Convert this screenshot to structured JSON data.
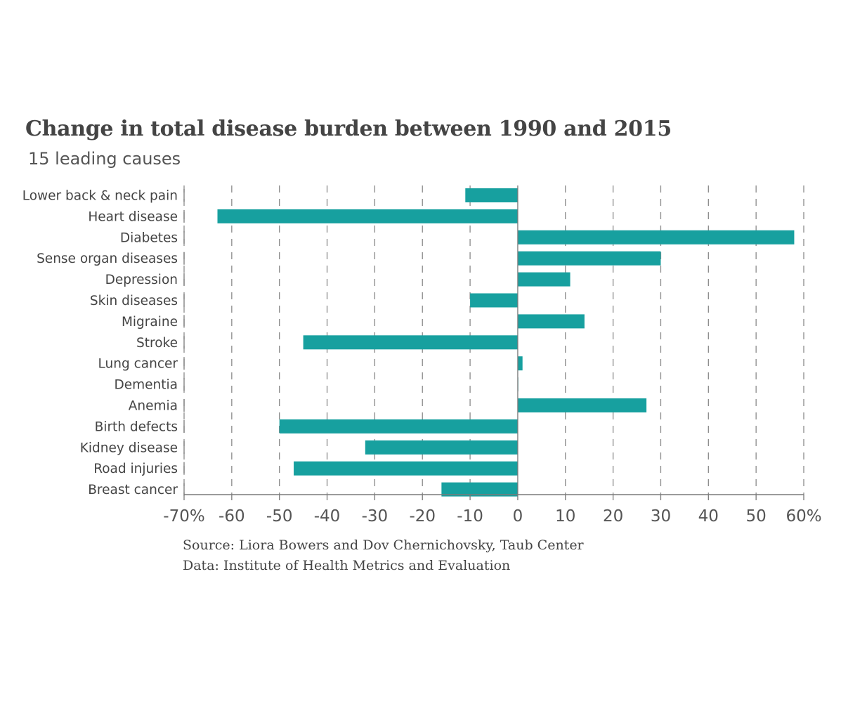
{
  "chart_data": {
    "type": "bar",
    "orientation": "horizontal",
    "title": "Change in total disease burden between 1990 and 2015",
    "subtitle": "15 leading causes",
    "categories": [
      "Lower back & neck pain",
      "Heart disease",
      "Diabetes",
      "Sense organ diseases",
      "Depression",
      "Skin diseases",
      "Migraine",
      "Stroke",
      "Lung cancer",
      "Dementia",
      "Anemia",
      "Birth defects",
      "Kidney disease",
      "Road injuries",
      "Breast cancer"
    ],
    "values": [
      -11,
      -63,
      58,
      30,
      11,
      -10,
      14,
      -45,
      1,
      0,
      27,
      -50,
      -32,
      -47,
      -16
    ],
    "unit": "%",
    "xlim": [
      -70,
      60
    ],
    "xticks": [
      -70,
      -60,
      -50,
      -40,
      -30,
      -20,
      -10,
      0,
      10,
      20,
      30,
      40,
      50,
      60
    ],
    "xtick_labels": [
      "-70%",
      "-60",
      "-50",
      "-40",
      "-30",
      "-20",
      "-10",
      "0",
      "10",
      "20",
      "30",
      "40",
      "50",
      "60%"
    ],
    "grid": "vertical dashed",
    "bar_color": "#17a09f",
    "source": "Source: Liora Bowers and Dov Chernichovsky, Taub Center",
    "data_source": "Data: Institute of Health Metrics and Evaluation"
  }
}
